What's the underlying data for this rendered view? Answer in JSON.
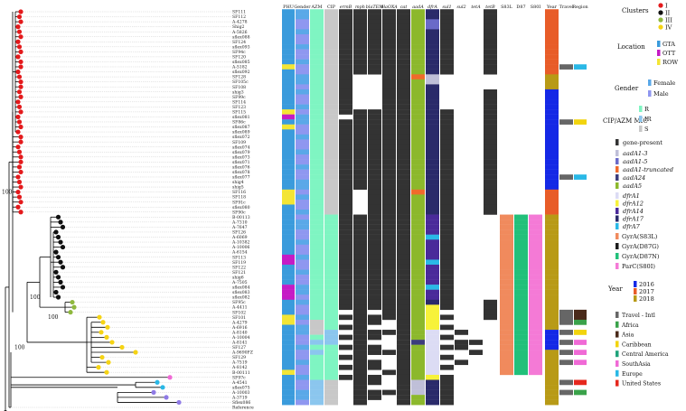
{
  "taxa": [
    "SF111",
    "SF112",
    "A-4278",
    "Shig2",
    "A-5826",
    "sflex088",
    "SF124",
    "sflex093",
    "SF94c",
    "SF120",
    "sflex085",
    "A-5182",
    "sflex092",
    "SF128",
    "SF105c",
    "SF108",
    "shig3",
    "SF99c",
    "SF114",
    "SF123",
    "SF115",
    "sflex081",
    "SF86c",
    "sflex087",
    "sflex089",
    "sflex072",
    "SF109",
    "sflex074",
    "sflex079",
    "sflex073",
    "sflex071",
    "sflex076",
    "sflex078",
    "sflex077",
    "shig4",
    "shig5",
    "SF116",
    "SF118",
    "SF91c",
    "sflex080",
    "SF90c",
    "B-00113",
    "A-7310",
    "A-7647",
    "SF126",
    "A-6069",
    "A-10382",
    "A-10006",
    "A-6154",
    "SF113",
    "SF119",
    "SF122",
    "SF121",
    "shig6",
    "A-7505",
    "sflex084",
    "sflex083",
    "sflex082",
    "SF95c",
    "A-4411",
    "SF102",
    "SF101",
    "A-4279",
    "A-6916",
    "A-8140",
    "A-10004",
    "A-8141",
    "SF127",
    "A-9690FZ",
    "SF129",
    "A-7519",
    "A-8142",
    "B-00111",
    "SF97c",
    "A-4541",
    "sflex075",
    "A-10003",
    "A-3719",
    "Sflex086",
    "Reference"
  ],
  "columns": [
    "PHU",
    "Gender",
    "AZM",
    "CIP",
    "ermB",
    "mph",
    "blaTEM",
    "blaOXA",
    "cat",
    "aadA",
    "dfrA",
    "sul1",
    "sul2",
    "tetA",
    "tetB",
    "S83L",
    "D87",
    "S80I",
    "Year",
    "Travel",
    "Region"
  ],
  "bootstrap": [
    "100",
    "100",
    "100",
    "100"
  ],
  "colors": {
    "I": "#e41a1c",
    "II": "#111111",
    "III": "#8fb83e",
    "IV": "#f5d314",
    "GTA": "#3a9bdc",
    "OTT": "#c51bc5",
    "ROW": "#f3e535",
    "Female": "#5aa8e8",
    "Male": "#8f97f0",
    "R": "#7ff5c2",
    "IR": "#8bc6ee",
    "S": "#c8c8c8",
    "present": "#333333",
    "aadA1_3": "#bfbfd8",
    "aadA1_5": "#6a6ac8",
    "aadA1_trunc": "#f06a2c",
    "aadA24": "#3c3c7c",
    "aadA5": "#8cb82c",
    "dfrA1": "#dcdcf4",
    "dfrA12": "#f7f23a",
    "dfrA14": "#4a2a9a",
    "dfrA17": "#2a2a6a",
    "dfrA7": "#2ab8e6",
    "S83L": "#f08a5d",
    "D87G": "#1b1b1b",
    "D87N": "#22c07a",
    "S80I": "#f47ad6",
    "y2016": "#1428e6",
    "y2017": "#e85c28",
    "y2018": "#b89a16",
    "Intl": "#666666",
    "Africa": "#3aa24a",
    "Asia": "#4a2a1a",
    "Caribbean": "#f2d40e",
    "CentralAmerica": "#1fa37a",
    "SouthAsia": "#f06ad6",
    "Europe": "#2ab8e6",
    "UnitedStates": "#e6281e",
    "tip_blue": "#2ab8e6",
    "tip_purple": "#8f7ae6",
    "tip_pink": "#f06ad6"
  },
  "legend": {
    "clusters": {
      "title": "Clusters",
      "items": [
        "I",
        "II",
        "III",
        "IV"
      ]
    },
    "location": {
      "title": "Location",
      "items": [
        "GTA",
        "OTT",
        "ROW"
      ]
    },
    "gender": {
      "title": "Gender",
      "items": [
        "Female",
        "Male"
      ]
    },
    "mic": {
      "title": "CIP/AZM MIC",
      "items": [
        "R",
        "IR",
        "S"
      ]
    },
    "gene": {
      "items": [
        "gene-present",
        "aadA1-3",
        "aadA1-5",
        "aadA1-truncated",
        "aadA24",
        "aadA5",
        "dfrA1",
        "dfrA12",
        "dfrA14",
        "dfrA17",
        "dfrA7"
      ]
    },
    "mutations": {
      "items": [
        "GyrA(S83L)",
        "GyrA(D87G)",
        "GyrA(D87N)",
        "ParC(S80I)"
      ]
    },
    "year": {
      "title": "Year",
      "items": [
        "2016",
        "2017",
        "2018"
      ]
    },
    "travel": {
      "items": [
        "Travel - Intl",
        "Africa",
        "Asia",
        "Caribbean",
        "Central America",
        "SouthAsia",
        "Europe",
        "United States"
      ]
    }
  }
}
